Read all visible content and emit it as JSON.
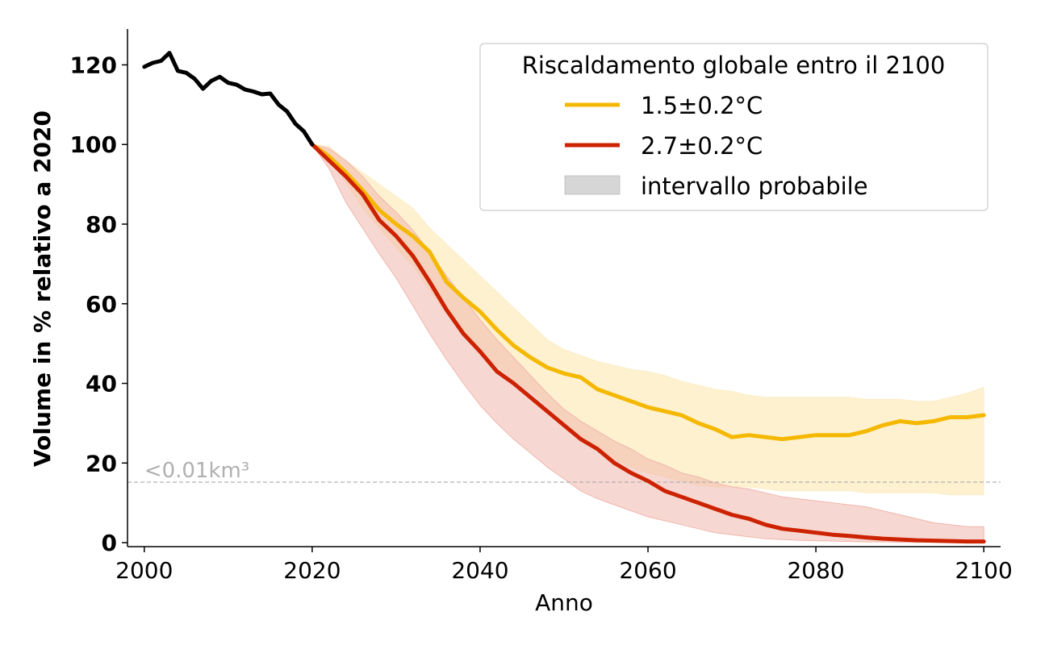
{
  "chart_data": {
    "type": "line",
    "xlabel": "Anno",
    "ylabel": "Volume in % relativo a 2020",
    "xlim": [
      1998,
      2102
    ],
    "ylim": [
      -1,
      129
    ],
    "xticks": [
      2000,
      2020,
      2040,
      2060,
      2080,
      2100
    ],
    "yticks": [
      0,
      20,
      40,
      60,
      80,
      100,
      120
    ],
    "grid": false,
    "legend": {
      "placement": "top-right",
      "title": "Riscaldamento globale entro il 2100",
      "entries": [
        {
          "label": "1.5±0.2°C",
          "color": "#f5b800",
          "kind": "line"
        },
        {
          "label": "2.7±0.2°C",
          "color": "#cc2200",
          "kind": "line"
        },
        {
          "label": "intervallo probabile",
          "color": "#d6d6d6",
          "kind": "patch"
        }
      ]
    },
    "reference_line": {
      "y": 15.2,
      "label": "<0.01km³",
      "color": "#b0b0b0"
    },
    "observed": {
      "color": "#000000",
      "x": [
        2000,
        2001,
        2002,
        2003,
        2004,
        2005,
        2006,
        2007,
        2008,
        2009,
        2010,
        2011,
        2012,
        2013,
        2014,
        2015,
        2016,
        2017,
        2018,
        2019,
        2020
      ],
      "values": [
        119.5,
        120.5,
        121,
        123,
        118.5,
        118,
        116.5,
        114,
        116,
        117,
        115.5,
        115,
        113.8,
        113.3,
        112.6,
        112.8,
        110,
        108.3,
        105.2,
        103.3,
        100
      ]
    },
    "series": [
      {
        "name": "1.5±0.2°C",
        "color": "#f5b800",
        "band_color": "#fdeec8",
        "x": [
          2020,
          2022,
          2024,
          2026,
          2028,
          2030,
          2032,
          2034,
          2036,
          2038,
          2040,
          2042,
          2044,
          2046,
          2048,
          2050,
          2052,
          2054,
          2056,
          2058,
          2060,
          2062,
          2064,
          2066,
          2068,
          2070,
          2072,
          2074,
          2076,
          2078,
          2080,
          2082,
          2084,
          2086,
          2088,
          2090,
          2092,
          2094,
          2096,
          2098,
          2100
        ],
        "values": [
          100,
          97,
          93,
          88.5,
          83.5,
          80,
          77,
          73,
          65.5,
          61.5,
          58,
          53.5,
          49.5,
          46.5,
          44,
          42.5,
          41.5,
          38.5,
          37,
          35.5,
          34,
          33,
          32,
          30,
          28.5,
          26.5,
          27,
          26.5,
          26,
          26.5,
          27,
          27,
          27,
          28,
          29.5,
          30.5,
          30,
          30.5,
          31.5,
          31.5,
          32
        ],
        "upper": [
          100,
          99.5,
          96,
          93,
          90,
          87,
          84,
          79,
          75,
          71,
          67,
          63,
          59,
          55,
          51,
          48.5,
          47,
          45.5,
          44.5,
          43.5,
          43,
          42,
          40.5,
          39.5,
          38.5,
          38,
          37,
          36.5,
          36.5,
          36.5,
          36.5,
          36.5,
          36.5,
          36,
          36,
          36,
          35.5,
          35.5,
          36.5,
          37.5,
          39
        ],
        "lower": [
          100,
          96,
          90.5,
          84,
          79,
          74,
          69.5,
          63.5,
          57.5,
          52.5,
          48,
          44.5,
          41,
          38,
          34.5,
          30.5,
          27,
          24,
          21,
          19,
          17.5,
          16.5,
          15.5,
          14.5,
          14,
          14,
          14,
          13.5,
          13,
          13,
          13,
          13,
          13,
          12.5,
          12.5,
          12.5,
          12.5,
          12.5,
          12,
          12,
          12
        ]
      },
      {
        "name": "2.7±0.2°C",
        "color": "#cc2200",
        "band_color": "#f0b6ac",
        "x": [
          2020,
          2022,
          2024,
          2026,
          2028,
          2030,
          2032,
          2034,
          2036,
          2038,
          2040,
          2042,
          2044,
          2046,
          2048,
          2050,
          2052,
          2054,
          2056,
          2058,
          2060,
          2062,
          2064,
          2066,
          2068,
          2070,
          2072,
          2074,
          2076,
          2078,
          2080,
          2082,
          2084,
          2086,
          2088,
          2090,
          2092,
          2094,
          2096,
          2098,
          2100
        ],
        "values": [
          100,
          96,
          92,
          87.5,
          81,
          77,
          72,
          65.5,
          58.5,
          52.5,
          48,
          43,
          40,
          36.5,
          33,
          29.5,
          26,
          23.5,
          20,
          17.5,
          15.5,
          13,
          11.5,
          10,
          8.5,
          7,
          6,
          4.5,
          3.5,
          3,
          2.5,
          2,
          1.7,
          1.3,
          1,
          0.8,
          0.6,
          0.5,
          0.4,
          0.3,
          0.3
        ],
        "upper": [
          100,
          99,
          96,
          92,
          87,
          83,
          78.5,
          73,
          67,
          61.5,
          56,
          51,
          46.5,
          42,
          37.5,
          33.5,
          30.5,
          28,
          25.5,
          23.5,
          21,
          19.5,
          17.5,
          16.5,
          15,
          14,
          13.5,
          12.5,
          11.5,
          11,
          10.5,
          10,
          9.5,
          9,
          8,
          7,
          6,
          5,
          4.5,
          4,
          4
        ],
        "lower": [
          100,
          94,
          85.5,
          79,
          72.5,
          66.5,
          59.5,
          52.5,
          46,
          40,
          34.5,
          30,
          26,
          22.5,
          19,
          16,
          13,
          11,
          9.5,
          8,
          6.5,
          5.5,
          4.5,
          3.5,
          2.5,
          2,
          1.5,
          1,
          0.8,
          0.6,
          0.5,
          0.4,
          0.3,
          0.2,
          0.2,
          0.1,
          0.1,
          0.1,
          0.1,
          0.1,
          0.1
        ]
      }
    ]
  }
}
